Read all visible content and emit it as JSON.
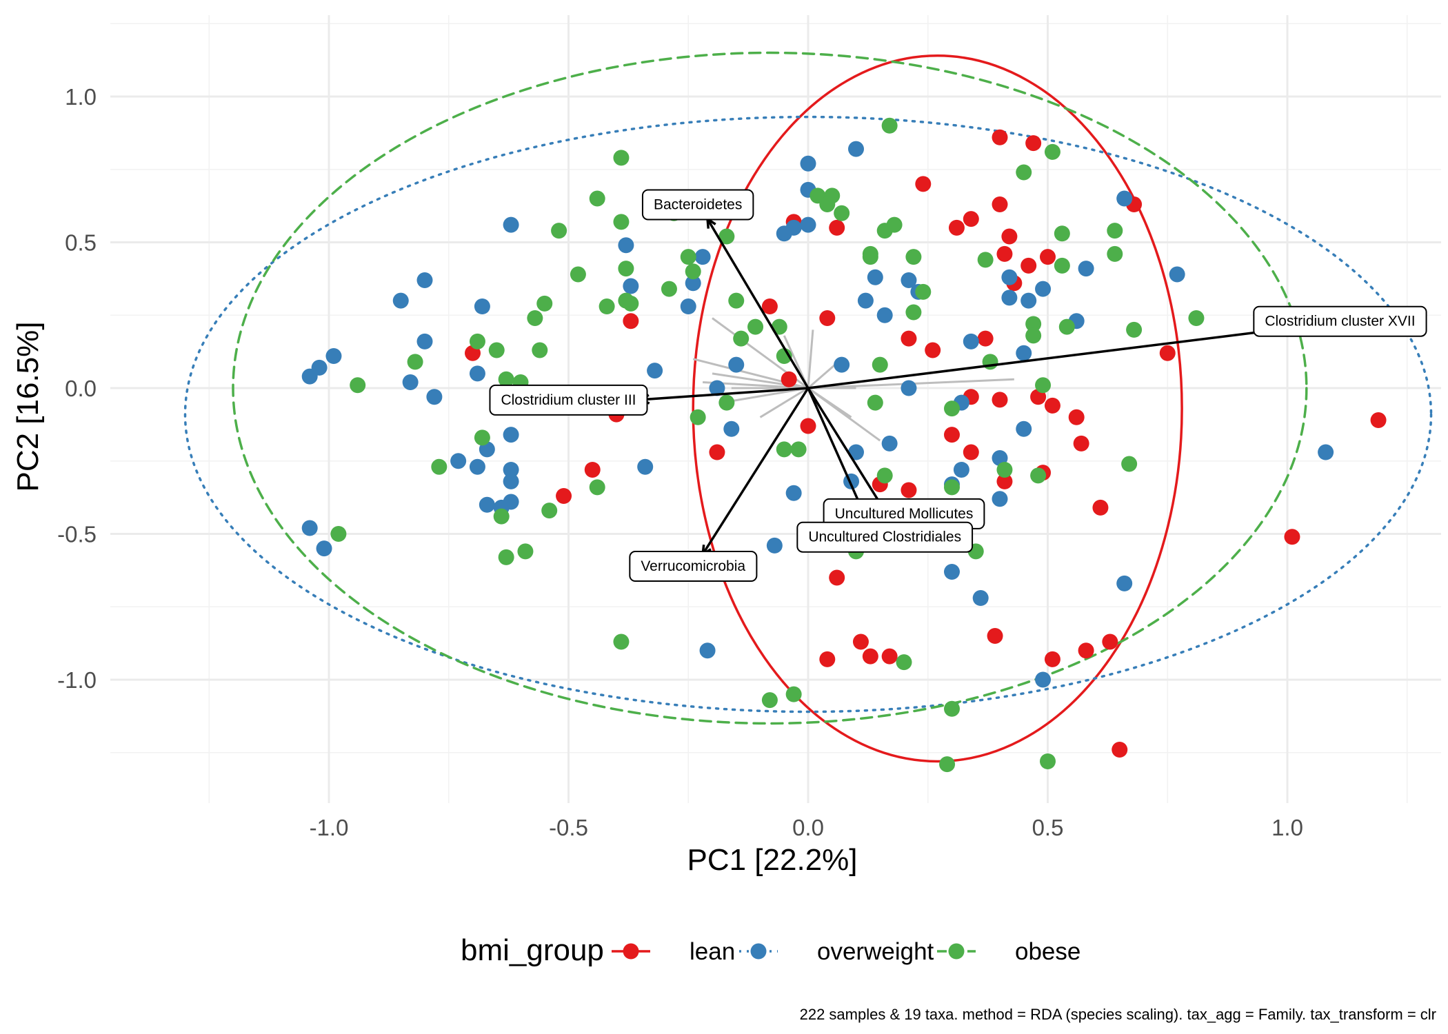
{
  "chart_data": {
    "type": "scatter",
    "title": "",
    "xlabel": "PC1 [22.2%]",
    "ylabel": "PC2 [16.5%]",
    "xlim": [
      -1.45,
      1.35
    ],
    "ylim": [
      -1.4,
      1.25
    ],
    "x_ticks": [
      -1.0,
      -0.5,
      0.0,
      0.5,
      1.0
    ],
    "x_tick_labels": [
      "-1.0",
      "-0.5",
      "0.0",
      "0.5",
      "1.0"
    ],
    "y_ticks": [
      1.0,
      0.5,
      0.0,
      -0.5,
      -1.0
    ],
    "y_tick_labels": [
      "1.0",
      "0.5",
      "0.0",
      "-0.5",
      "-1.0"
    ],
    "grid": true,
    "legend": {
      "title": "bmi_group",
      "position": "bottom",
      "entries": [
        "lean",
        "overweight",
        "obese"
      ]
    },
    "caption": "222 samples & 19 taxa. method = RDA (species scaling). tax_agg = Family. tax_transform = clr",
    "colors": {
      "lean": "#e41a1c",
      "overweight": "#377eb8",
      "obese": "#4daf4a"
    },
    "series": [
      {
        "name": "lean",
        "ellipse": {
          "cx": 0.27,
          "cy": -0.07,
          "rx": 0.51,
          "ry": 1.21,
          "style": "solid"
        },
        "points": [
          [
            0.4,
            0.86
          ],
          [
            0.47,
            0.84
          ],
          [
            0.24,
            0.7
          ],
          [
            -0.03,
            0.57
          ],
          [
            0.06,
            0.55
          ],
          [
            0.34,
            0.58
          ],
          [
            0.31,
            0.55
          ],
          [
            0.4,
            0.63
          ],
          [
            0.42,
            0.52
          ],
          [
            0.41,
            0.46
          ],
          [
            0.5,
            0.45
          ],
          [
            0.46,
            0.42
          ],
          [
            0.43,
            0.36
          ],
          [
            0.68,
            0.63
          ],
          [
            -0.08,
            0.28
          ],
          [
            -0.37,
            0.23
          ],
          [
            0.04,
            0.24
          ],
          [
            0.21,
            0.17
          ],
          [
            0.26,
            0.13
          ],
          [
            0.37,
            0.17
          ],
          [
            -0.7,
            0.12
          ],
          [
            0.75,
            0.12
          ],
          [
            1.19,
            -0.11
          ],
          [
            -0.04,
            0.03
          ],
          [
            -0.4,
            -0.09
          ],
          [
            0.34,
            -0.03
          ],
          [
            0.4,
            -0.04
          ],
          [
            0.48,
            -0.03
          ],
          [
            0.51,
            -0.06
          ],
          [
            0.56,
            -0.1
          ],
          [
            0.0,
            -0.13
          ],
          [
            0.3,
            -0.16
          ],
          [
            0.34,
            -0.22
          ],
          [
            0.57,
            -0.19
          ],
          [
            -0.19,
            -0.22
          ],
          [
            -0.45,
            -0.28
          ],
          [
            0.41,
            -0.32
          ],
          [
            0.49,
            -0.29
          ],
          [
            0.15,
            -0.33
          ],
          [
            0.21,
            -0.35
          ],
          [
            -0.51,
            -0.37
          ],
          [
            0.61,
            -0.41
          ],
          [
            1.01,
            -0.51
          ],
          [
            0.24,
            -0.53
          ],
          [
            0.06,
            -0.65
          ],
          [
            0.39,
            -0.85
          ],
          [
            0.11,
            -0.87
          ],
          [
            0.63,
            -0.87
          ],
          [
            0.58,
            -0.9
          ],
          [
            0.13,
            -0.92
          ],
          [
            0.17,
            -0.92
          ],
          [
            0.51,
            -0.93
          ],
          [
            0.04,
            -0.93
          ],
          [
            0.65,
            -1.24
          ]
        ]
      },
      {
        "name": "overweight",
        "ellipse": {
          "cx": 0.0,
          "cy": -0.09,
          "rx": 1.3,
          "ry": 1.02,
          "style": "dotted"
        },
        "points": [
          [
            -0.62,
            0.56
          ],
          [
            0.1,
            0.82
          ],
          [
            0.0,
            0.77
          ],
          [
            0.0,
            0.68
          ],
          [
            -0.03,
            0.55
          ],
          [
            0.0,
            0.56
          ],
          [
            -0.05,
            0.53
          ],
          [
            -0.38,
            0.49
          ],
          [
            -0.22,
            0.45
          ],
          [
            -0.24,
            0.36
          ],
          [
            -0.37,
            0.35
          ],
          [
            -0.25,
            0.28
          ],
          [
            0.14,
            0.38
          ],
          [
            0.21,
            0.37
          ],
          [
            0.23,
            0.33
          ],
          [
            0.12,
            0.3
          ],
          [
            0.16,
            0.25
          ],
          [
            0.42,
            0.38
          ],
          [
            0.46,
            0.3
          ],
          [
            0.42,
            0.31
          ],
          [
            0.49,
            0.34
          ],
          [
            0.58,
            0.41
          ],
          [
            0.56,
            0.23
          ],
          [
            0.66,
            0.65
          ],
          [
            0.77,
            0.39
          ],
          [
            -0.8,
            0.37
          ],
          [
            -0.85,
            0.3
          ],
          [
            -0.68,
            0.28
          ],
          [
            -0.8,
            0.16
          ],
          [
            -0.99,
            0.11
          ],
          [
            -1.02,
            0.07
          ],
          [
            -1.04,
            0.04
          ],
          [
            -0.83,
            0.02
          ],
          [
            -0.78,
            -0.03
          ],
          [
            -0.69,
            0.05
          ],
          [
            -0.32,
            0.06
          ],
          [
            -0.15,
            0.08
          ],
          [
            -0.19,
            0.0
          ],
          [
            0.07,
            0.08
          ],
          [
            0.34,
            0.16
          ],
          [
            0.45,
            0.12
          ],
          [
            0.21,
            0.0
          ],
          [
            0.32,
            -0.05
          ],
          [
            0.45,
            -0.14
          ],
          [
            -0.16,
            -0.14
          ],
          [
            -0.62,
            -0.16
          ],
          [
            -0.67,
            -0.21
          ],
          [
            -0.73,
            -0.25
          ],
          [
            -0.69,
            -0.27
          ],
          [
            -0.62,
            -0.28
          ],
          [
            -0.62,
            -0.32
          ],
          [
            -0.34,
            -0.27
          ],
          [
            0.1,
            -0.22
          ],
          [
            0.17,
            -0.19
          ],
          [
            0.09,
            -0.32
          ],
          [
            0.32,
            -0.28
          ],
          [
            0.4,
            -0.24
          ],
          [
            0.3,
            -0.33
          ],
          [
            -0.67,
            -0.4
          ],
          [
            -0.64,
            -0.41
          ],
          [
            -0.62,
            -0.39
          ],
          [
            -0.03,
            -0.36
          ],
          [
            0.4,
            -0.38
          ],
          [
            -1.04,
            -0.48
          ],
          [
            -1.01,
            -0.55
          ],
          [
            -0.07,
            -0.54
          ],
          [
            -0.21,
            -0.59
          ],
          [
            0.3,
            -0.63
          ],
          [
            0.66,
            -0.67
          ],
          [
            0.36,
            -0.72
          ],
          [
            -0.21,
            -0.9
          ],
          [
            0.49,
            -1.0
          ],
          [
            1.08,
            -0.22
          ]
        ]
      },
      {
        "name": "obese",
        "ellipse": {
          "cx": -0.08,
          "cy": 0.0,
          "rx": 1.12,
          "ry": 1.15,
          "style": "dashed"
        },
        "points": [
          [
            0.17,
            0.9
          ],
          [
            0.51,
            0.81
          ],
          [
            -0.39,
            0.79
          ],
          [
            0.45,
            0.74
          ],
          [
            0.02,
            0.66
          ],
          [
            0.05,
            0.66
          ],
          [
            0.04,
            0.63
          ],
          [
            0.07,
            0.6
          ],
          [
            -0.44,
            0.65
          ],
          [
            -0.39,
            0.57
          ],
          [
            -0.52,
            0.54
          ],
          [
            -0.28,
            0.6
          ],
          [
            -0.17,
            0.52
          ],
          [
            0.16,
            0.54
          ],
          [
            0.18,
            0.56
          ],
          [
            0.13,
            0.46
          ],
          [
            0.13,
            0.45
          ],
          [
            0.22,
            0.45
          ],
          [
            -0.25,
            0.45
          ],
          [
            -0.24,
            0.4
          ],
          [
            -0.38,
            0.41
          ],
          [
            -0.48,
            0.39
          ],
          [
            -0.29,
            0.34
          ],
          [
            -0.15,
            0.3
          ],
          [
            -0.37,
            0.29
          ],
          [
            -0.38,
            0.3
          ],
          [
            -0.42,
            0.28
          ],
          [
            -0.55,
            0.29
          ],
          [
            -0.57,
            0.24
          ],
          [
            0.24,
            0.33
          ],
          [
            0.37,
            0.44
          ],
          [
            0.53,
            0.53
          ],
          [
            0.53,
            0.42
          ],
          [
            0.64,
            0.54
          ],
          [
            0.64,
            0.46
          ],
          [
            0.54,
            0.21
          ],
          [
            0.22,
            0.26
          ],
          [
            0.47,
            0.22
          ],
          [
            0.47,
            0.18
          ],
          [
            0.68,
            0.2
          ],
          [
            0.81,
            0.24
          ],
          [
            -0.11,
            0.21
          ],
          [
            -0.06,
            0.21
          ],
          [
            -0.14,
            0.17
          ],
          [
            -0.69,
            0.16
          ],
          [
            -0.65,
            0.13
          ],
          [
            -0.56,
            0.13
          ],
          [
            -0.82,
            0.09
          ],
          [
            -0.94,
            0.01
          ],
          [
            -0.63,
            0.03
          ],
          [
            -0.6,
            0.02
          ],
          [
            -0.58,
            -0.04
          ],
          [
            -0.5,
            -0.04
          ],
          [
            -0.17,
            -0.05
          ],
          [
            -0.05,
            0.11
          ],
          [
            0.15,
            0.08
          ],
          [
            0.38,
            0.09
          ],
          [
            0.49,
            0.01
          ],
          [
            0.14,
            -0.05
          ],
          [
            0.3,
            -0.07
          ],
          [
            -0.68,
            -0.17
          ],
          [
            -0.77,
            -0.27
          ],
          [
            -0.23,
            -0.1
          ],
          [
            -0.05,
            -0.21
          ],
          [
            -0.02,
            -0.21
          ],
          [
            0.16,
            -0.3
          ],
          [
            0.3,
            -0.34
          ],
          [
            0.41,
            -0.28
          ],
          [
            0.48,
            -0.3
          ],
          [
            0.67,
            -0.26
          ],
          [
            -0.54,
            -0.42
          ],
          [
            -0.64,
            -0.44
          ],
          [
            -0.44,
            -0.34
          ],
          [
            0.33,
            -0.41
          ],
          [
            0.35,
            -0.56
          ],
          [
            0.1,
            -0.56
          ],
          [
            -0.98,
            -0.5
          ],
          [
            -0.63,
            -0.58
          ],
          [
            -0.59,
            -0.56
          ],
          [
            -0.39,
            -0.87
          ],
          [
            0.2,
            -0.94
          ],
          [
            -0.08,
            -1.07
          ],
          [
            -0.03,
            -1.05
          ],
          [
            0.3,
            -1.1
          ],
          [
            0.29,
            -1.29
          ],
          [
            0.5,
            -1.28
          ]
        ]
      }
    ],
    "loading_arrows": [
      {
        "taxon": "Bacteroidetes",
        "x": -0.21,
        "y": 0.58,
        "label_x": -0.23,
        "label_y": 0.63
      },
      {
        "taxon": "Clostridium cluster XVII",
        "x": 0.98,
        "y": 0.2,
        "label_x": 1.11,
        "label_y": 0.23
      },
      {
        "taxon": "Clostridium cluster III",
        "x": -0.35,
        "y": -0.04,
        "label_x": -0.5,
        "label_y": -0.04
      },
      {
        "taxon": "Uncultured Mollicutes",
        "x": 0.19,
        "y": -0.5,
        "label_x": 0.2,
        "label_y": -0.43
      },
      {
        "taxon": "Uncultured Clostridiales",
        "x": 0.13,
        "y": -0.48,
        "label_x": 0.16,
        "label_y": -0.51
      },
      {
        "taxon": "Verrucomicrobia",
        "x": -0.22,
        "y": -0.57,
        "label_x": -0.24,
        "label_y": -0.61
      }
    ],
    "minor_loadings": [
      [
        -0.2,
        0.24
      ],
      [
        -0.24,
        0.1
      ],
      [
        -0.2,
        0.05
      ],
      [
        -0.22,
        0.02
      ],
      [
        -0.16,
        0.0
      ],
      [
        -0.18,
        -0.05
      ],
      [
        -0.1,
        -0.1
      ],
      [
        -0.05,
        0.18
      ],
      [
        0.01,
        0.2
      ],
      [
        0.07,
        0.1
      ],
      [
        0.09,
        -0.1
      ],
      [
        0.15,
        -0.18
      ],
      [
        0.43,
        0.03
      ],
      [
        0.1,
        0.0
      ]
    ]
  }
}
